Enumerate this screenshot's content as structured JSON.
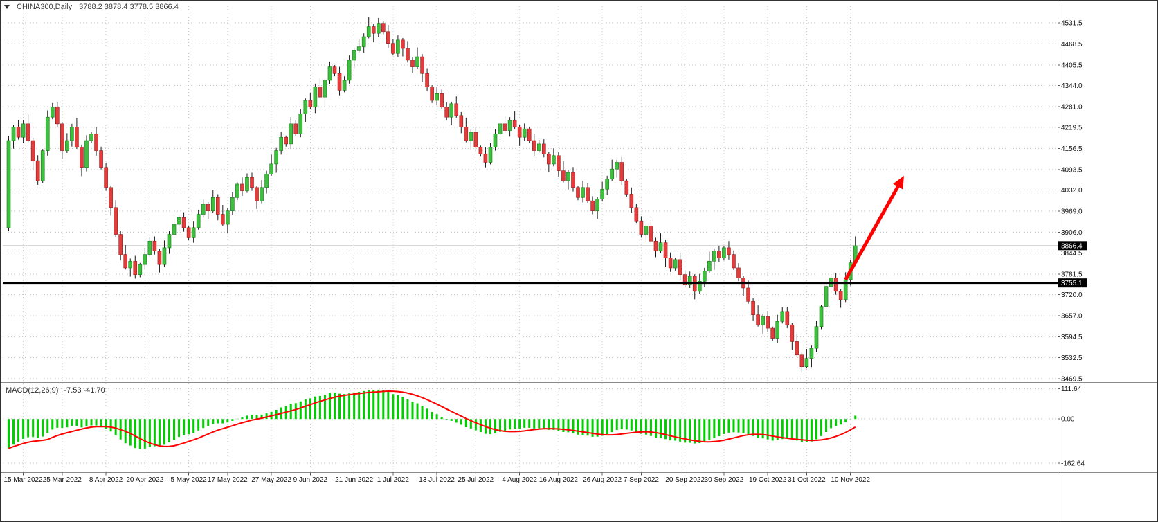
{
  "header": {
    "symbol_period": "CHINA300,Daily",
    "ohlc": "3788.2 3878.4 3778.5 3866.4"
  },
  "macd_panel": {
    "label": "MACD(12,26,9)",
    "values_text": "-7.53 -41.70",
    "ticks": [
      "111.64",
      "0.00",
      "-162.64"
    ],
    "range": {
      "max": 125,
      "min": -185
    },
    "histogram_color": "#00CE00",
    "signal_color": "#FF0000"
  },
  "chart_data": {
    "type": "candlestick",
    "title": "CHINA300 Daily",
    "symbol": "CHINA300",
    "timeframe": "Daily",
    "up_color": "#3FBF3F",
    "up_border": "#157a15",
    "down_color": "#E23C3C",
    "down_border": "#9c1c1c",
    "wick_color": "#1a1a1a",
    "grid_color": "#c9c9c9",
    "price_range": {
      "min": 3461,
      "max": 4581
    },
    "y_axis": {
      "ticks": [
        "4531.5",
        "4468.5",
        "4405.5",
        "4344.0",
        "4281.0",
        "4219.5",
        "4156.5",
        "4093.5",
        "4032.0",
        "3969.0",
        "3906.0",
        "3844.5",
        "3781.5",
        "3720.0",
        "3657.0",
        "3594.5",
        "3532.5",
        "3469.5"
      ]
    },
    "x_axis": {
      "labels": [
        "15 Mar 2022",
        "25 Mar 2022",
        "8 Apr 2022",
        "20 Apr 2022",
        "5 May 2022",
        "17 May 2022",
        "27 May 2022",
        "9 Jun 2022",
        "21 Jun 2022",
        "1 Jul 2022",
        "13 Jul 2022",
        "25 Jul 2022",
        "4 Aug 2022",
        "16 Aug 2022",
        "26 Aug 2022",
        "7 Sep 2022",
        "20 Sep 2022",
        "30 Sep 2022",
        "19 Oct 2022",
        "31 Oct 2022",
        "10 Nov 2022"
      ],
      "tick_indices": [
        3,
        11,
        20,
        28,
        37,
        45,
        54,
        62,
        71,
        79,
        88,
        96,
        105,
        113,
        122,
        130,
        139,
        147,
        156,
        164,
        173
      ]
    },
    "first_open": 3920,
    "closes": [
      4180,
      4220,
      4190,
      4230,
      4180,
      4120,
      4060,
      4150,
      4250,
      4280,
      4230,
      4150,
      4180,
      4220,
      4160,
      4100,
      4180,
      4200,
      4150,
      4100,
      4040,
      3980,
      3900,
      3840,
      3800,
      3820,
      3780,
      3810,
      3840,
      3880,
      3850,
      3810,
      3860,
      3900,
      3930,
      3950,
      3920,
      3890,
      3920,
      3960,
      3990,
      3970,
      4010,
      3960,
      3930,
      3970,
      4010,
      4050,
      4030,
      4070,
      4040,
      4000,
      4040,
      4080,
      4110,
      4150,
      4190,
      4170,
      4230,
      4200,
      4260,
      4300,
      4280,
      4340,
      4310,
      4360,
      4400,
      4380,
      4330,
      4360,
      4420,
      4450,
      4460,
      4490,
      4520,
      4500,
      4530,
      4505,
      4470,
      4440,
      4480,
      4455,
      4420,
      4400,
      4430,
      4380,
      4340,
      4300,
      4320,
      4280,
      4250,
      4290,
      4255,
      4220,
      4180,
      4205,
      4160,
      4140,
      4115,
      4160,
      4200,
      4230,
      4210,
      4240,
      4220,
      4190,
      4215,
      4180,
      4150,
      4170,
      4140,
      4110,
      4135,
      4090,
      4060,
      4085,
      4040,
      4010,
      4040,
      4000,
      3970,
      4005,
      4035,
      4065,
      4095,
      4115,
      4060,
      4020,
      3980,
      3940,
      3900,
      3925,
      3880,
      3850,
      3875,
      3830,
      3800,
      3825,
      3780,
      3750,
      3775,
      3730,
      3760,
      3790,
      3820,
      3850,
      3830,
      3860,
      3840,
      3800,
      3770,
      3740,
      3700,
      3660,
      3630,
      3655,
      3620,
      3590,
      3640,
      3670,
      3630,
      3580,
      3540,
      3505,
      3530,
      3560,
      3625,
      3685,
      3745,
      3770,
      3730,
      3705,
      3765,
      3815,
      3866
    ],
    "wick_high_pattern": [
      14,
      6,
      22,
      10,
      28,
      8,
      16,
      5,
      20,
      12
    ],
    "wick_low_pattern": [
      10,
      24,
      7,
      18,
      5,
      26,
      12,
      8,
      15,
      6
    ],
    "current_price": 3866.4,
    "current_price_label": "3866.4",
    "horizontal_line": 3755.1,
    "horizontal_line_label": "3755.1",
    "tag_bg": "#000000",
    "tag_fg": "#ffffff",
    "indicator": {
      "name": "MACD",
      "fast": 12,
      "slow": 26,
      "signal": 9,
      "seed_fast": 4140,
      "seed_slow": 4260
    },
    "annotations": [
      {
        "type": "arrow",
        "color": "#FF0000",
        "from_index": 172,
        "from_price": 3765,
        "to_index": 184,
        "to_price": 4075,
        "stroke_width": 5
      }
    ]
  }
}
